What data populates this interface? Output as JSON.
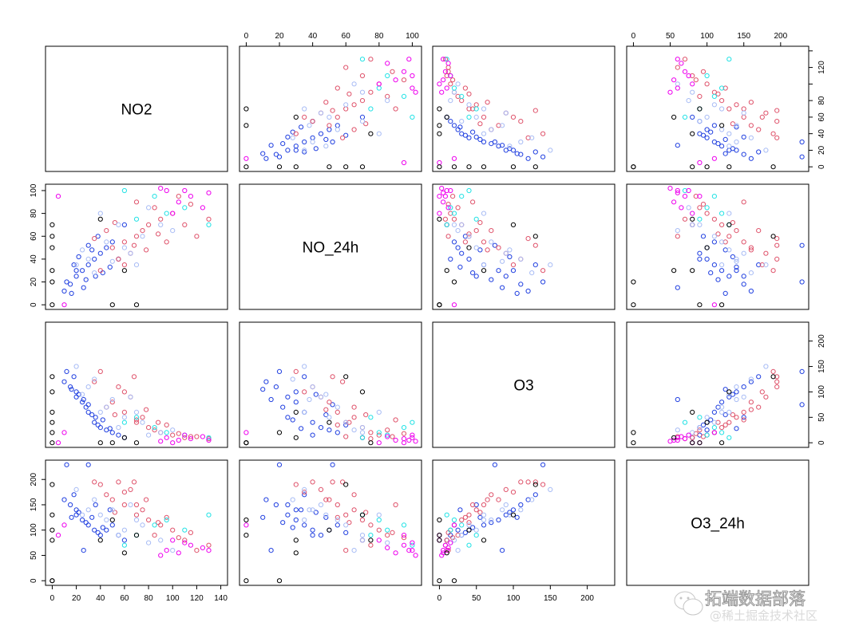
{
  "chart_data": {
    "type": "scatter",
    "subtype": "scatterplot-matrix",
    "variables": [
      {
        "name": "NO2",
        "range": [
          0,
          140
        ],
        "ticks": [
          0,
          20,
          40,
          60,
          80,
          100,
          120,
          140
        ],
        "bottom_labels": [
          "0",
          "20",
          "40",
          "60",
          "80",
          "100",
          "120",
          "140"
        ],
        "right_labels": [
          "0",
          "20",
          "40",
          "60",
          "80",
          "",
          "120",
          ""
        ]
      },
      {
        "name": "NO_24h",
        "range": [
          0,
          101.5
        ],
        "ticks": [
          0,
          20,
          40,
          60,
          80,
          100
        ],
        "top_labels": [
          "0",
          "20",
          "40",
          "60",
          "80",
          "100"
        ],
        "left_labels": [
          "0",
          "20",
          "40",
          "60",
          "80",
          "100"
        ]
      },
      {
        "name": "O3",
        "range": [
          0,
          228
        ],
        "ticks": [
          0,
          50,
          100,
          150,
          200
        ],
        "bottom_labels": [
          "0",
          "50",
          "100",
          "150",
          "200"
        ],
        "right_labels": [
          "0",
          "50",
          "100",
          "150",
          "200"
        ]
      },
      {
        "name": "O3_24h",
        "range": [
          0,
          229
        ],
        "ticks": [
          0,
          50,
          100,
          150,
          200
        ],
        "top_labels": [
          "0",
          "50",
          "100",
          "150",
          "200"
        ],
        "left_labels": [
          "0",
          "50",
          "100",
          "150",
          "200"
        ]
      }
    ],
    "group_colors": [
      "#000000",
      "#DF536B",
      "#A8BCF5",
      "#22E2E5",
      "#EE00EE",
      "#2140E0"
    ],
    "marker": "open-circle",
    "grid": false,
    "points_columns": [
      "NO2",
      "NO_24h",
      "O3",
      "O3_24h",
      "group"
    ],
    "points": [
      [
        20,
        25,
        90,
        130,
        5
      ],
      [
        15,
        18,
        110,
        150,
        5
      ],
      [
        25,
        30,
        80,
        120,
        5
      ],
      [
        30,
        35,
        60,
        110,
        5
      ],
      [
        35,
        40,
        40,
        100,
        5
      ],
      [
        40,
        45,
        30,
        90,
        5
      ],
      [
        10,
        12,
        120,
        160,
        5
      ],
      [
        45,
        50,
        25,
        100,
        5
      ],
      [
        50,
        55,
        20,
        110,
        5
      ],
      [
        20,
        30,
        100,
        140,
        5
      ],
      [
        28,
        22,
        70,
        115,
        5
      ],
      [
        33,
        48,
        55,
        125,
        5
      ],
      [
        38,
        60,
        35,
        95,
        5
      ],
      [
        18,
        35,
        130,
        170,
        5
      ],
      [
        42,
        28,
        45,
        105,
        5
      ],
      [
        55,
        40,
        15,
        90,
        5
      ],
      [
        22,
        42,
        95,
        135,
        5
      ],
      [
        12,
        20,
        140,
        229,
        5
      ],
      [
        30,
        52,
        75,
        229,
        5
      ],
      [
        60,
        70,
        10,
        80,
        5
      ],
      [
        26,
        15,
        85,
        60,
        5
      ],
      [
        48,
        33,
        28,
        140,
        5
      ],
      [
        36,
        25,
        50,
        150,
        5
      ],
      [
        16,
        10,
        105,
        125,
        5
      ],
      [
        60,
        55,
        60,
        150,
        1
      ],
      [
        70,
        60,
        40,
        130,
        1
      ],
      [
        80,
        70,
        30,
        120,
        1
      ],
      [
        50,
        50,
        80,
        160,
        1
      ],
      [
        90,
        75,
        20,
        110,
        1
      ],
      [
        100,
        80,
        15,
        100,
        1
      ],
      [
        65,
        45,
        90,
        180,
        1
      ],
      [
        75,
        65,
        50,
        140,
        1
      ],
      [
        55,
        40,
        110,
        195,
        1
      ],
      [
        85,
        85,
        25,
        90,
        1
      ],
      [
        110,
        70,
        10,
        80,
        1
      ],
      [
        120,
        60,
        12,
        60,
        1
      ],
      [
        45,
        65,
        70,
        170,
        1
      ],
      [
        95,
        55,
        35,
        125,
        1
      ],
      [
        40,
        30,
        140,
        190,
        1
      ],
      [
        70,
        90,
        45,
        150,
        1
      ],
      [
        60,
        35,
        100,
        175,
        1
      ],
      [
        130,
        75,
        8,
        70,
        1
      ],
      [
        105,
        95,
        18,
        85,
        1
      ],
      [
        35,
        58,
        120,
        195,
        1
      ],
      [
        78,
        48,
        65,
        160,
        1
      ],
      [
        52,
        72,
        55,
        135,
        1
      ],
      [
        88,
        62,
        40,
        115,
        1
      ],
      [
        115,
        88,
        12,
        95,
        1
      ],
      [
        68,
        52,
        130,
        195,
        1
      ],
      [
        30,
        40,
        110,
        140,
        2
      ],
      [
        45,
        55,
        70,
        120,
        2
      ],
      [
        60,
        50,
        50,
        100,
        2
      ],
      [
        75,
        60,
        40,
        110,
        2
      ],
      [
        20,
        35,
        150,
        180,
        2
      ],
      [
        55,
        70,
        30,
        90,
        2
      ],
      [
        90,
        70,
        20,
        80,
        2
      ],
      [
        40,
        80,
        60,
        130,
        2
      ],
      [
        65,
        45,
        90,
        150,
        2
      ],
      [
        35,
        28,
        125,
        160,
        2
      ],
      [
        100,
        65,
        25,
        60,
        2
      ],
      [
        50,
        38,
        85,
        140,
        2
      ],
      [
        80,
        85,
        15,
        75,
        2
      ],
      [
        25,
        48,
        95,
        130,
        2
      ],
      [
        70,
        35,
        60,
        120,
        2
      ],
      [
        85,
        95,
        30,
        110,
        3
      ],
      [
        95,
        80,
        20,
        120,
        3
      ],
      [
        70,
        75,
        50,
        90,
        3
      ],
      [
        110,
        85,
        15,
        100,
        3
      ],
      [
        60,
        100,
        40,
        70,
        3
      ],
      [
        130,
        70,
        10,
        130,
        3
      ],
      [
        95,
        100,
        10,
        60,
        4
      ],
      [
        105,
        90,
        5,
        55,
        4
      ],
      [
        115,
        95,
        8,
        70,
        4
      ],
      [
        90,
        102,
        3,
        50,
        4
      ],
      [
        125,
        85,
        12,
        65,
        4
      ],
      [
        100,
        80,
        0,
        80,
        4
      ],
      [
        5,
        95,
        0,
        90,
        4
      ],
      [
        110,
        100,
        15,
        75,
        4
      ],
      [
        130,
        98,
        5,
        60,
        4
      ],
      [
        10,
        0,
        20,
        110,
        4
      ],
      [
        0,
        30,
        60,
        80,
        0
      ],
      [
        0,
        50,
        40,
        100,
        0
      ],
      [
        0,
        70,
        100,
        130,
        0
      ],
      [
        0,
        20,
        20,
        0,
        0
      ],
      [
        0,
        0,
        0,
        0,
        0
      ],
      [
        50,
        0,
        0,
        120,
        0
      ],
      [
        70,
        0,
        0,
        90,
        0
      ],
      [
        40,
        75,
        0,
        80,
        0
      ],
      [
        0,
        60,
        130,
        190,
        0
      ],
      [
        60,
        30,
        10,
        55,
        0
      ]
    ]
  },
  "watermark": {
    "line1": "拓端数据部落",
    "line2": "@稀土掘金技术社区"
  }
}
